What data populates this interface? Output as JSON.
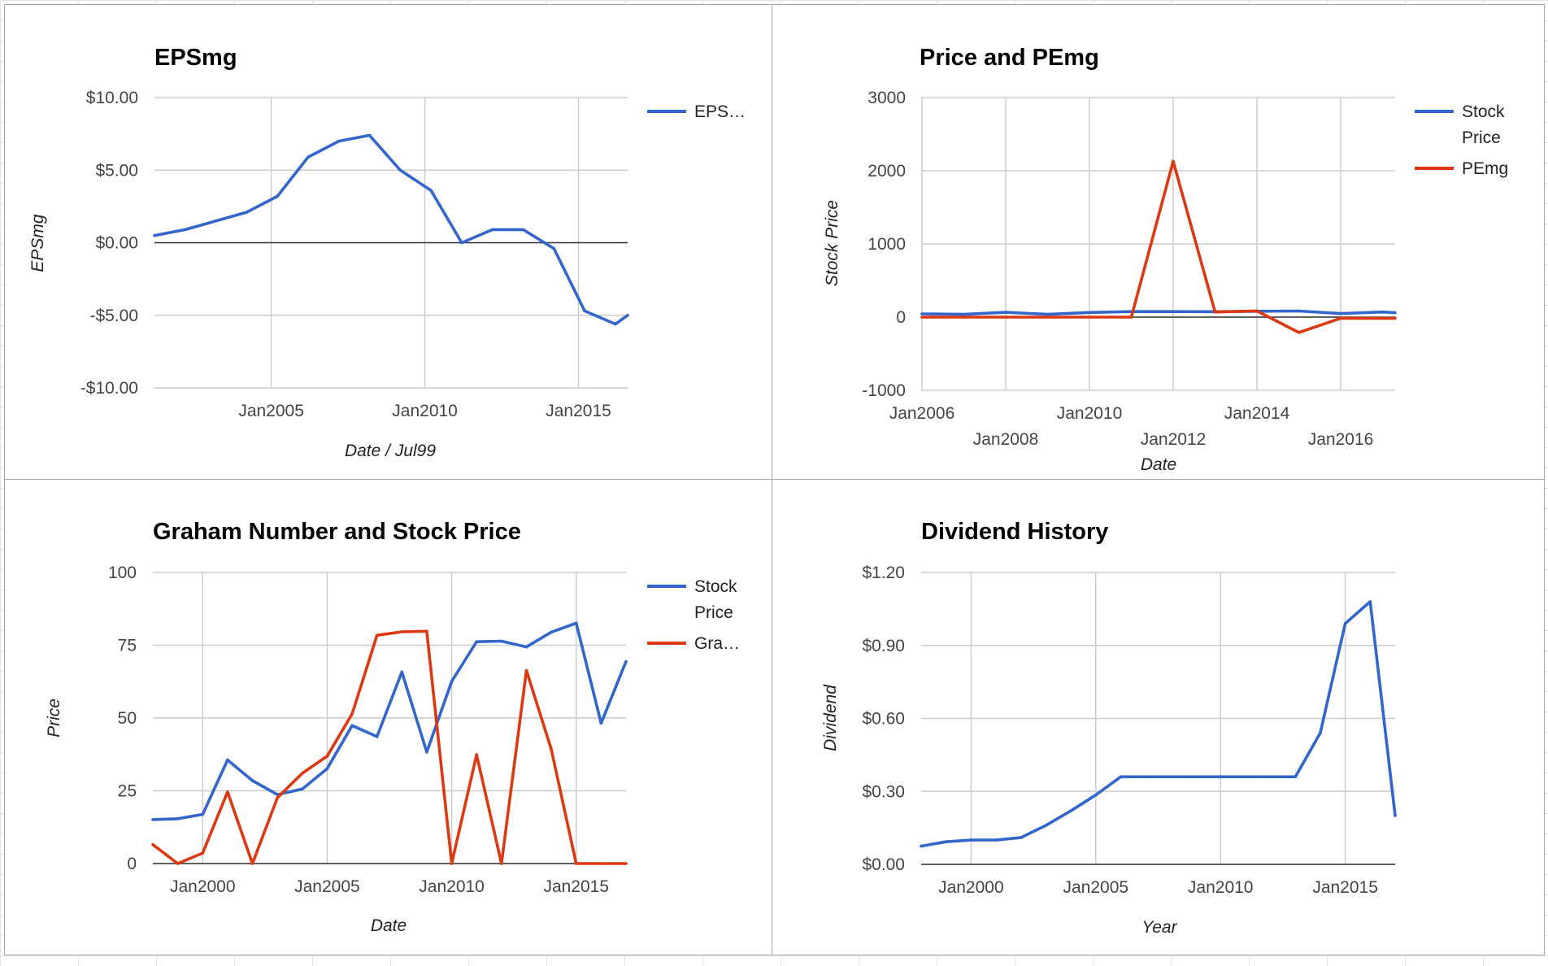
{
  "colors": {
    "blue": "#3366cc",
    "red": "#dc3912",
    "grid": "#cccccc",
    "zero_line": "#333333",
    "text": "#444444",
    "title": "#000000"
  },
  "charts": [
    {
      "title": "EPSmg",
      "ylabel": "EPSmg",
      "xlabel": "Date / Jul99",
      "xticks": [
        "Jan2005",
        "Jan2010",
        "Jan2015"
      ],
      "yticks": [
        "$10.00",
        "$5.00",
        "$0.00",
        "-$5.00",
        "-$10.00"
      ],
      "legend": [
        "EPS…"
      ]
    },
    {
      "title": "Price and PEmg",
      "ylabel": "Stock Price",
      "xlabel": "Date",
      "xticks": [
        "Jan2006",
        "Jan2008",
        "Jan2010",
        "Jan2012",
        "Jan2014",
        "Jan2016"
      ],
      "yticks": [
        "3000",
        "2000",
        "1000",
        "0",
        "-1000"
      ],
      "legend": [
        "Stock Price",
        "PEmg"
      ]
    },
    {
      "title": "Graham Number and Stock Price",
      "ylabel": "Price",
      "xlabel": "Date",
      "xticks": [
        "Jan2000",
        "Jan2005",
        "Jan2010",
        "Jan2015"
      ],
      "yticks": [
        "100",
        "75",
        "50",
        "25",
        "0"
      ],
      "legend": [
        "Stock Price",
        "Gra…"
      ]
    },
    {
      "title": "Dividend History",
      "ylabel": "Dividend",
      "xlabel": "Year",
      "xticks": [
        "Jan2000",
        "Jan2005",
        "Jan2010",
        "Jan2015"
      ],
      "yticks": [
        "$1.20",
        "$0.90",
        "$0.60",
        "$0.30",
        "$0.00"
      ],
      "legend": []
    }
  ],
  "chart_data": [
    {
      "type": "line",
      "title": "EPSmg",
      "xlabel": "Date / Jul99",
      "ylabel": "EPSmg",
      "ylim": [
        -10,
        10
      ],
      "xlim": [
        2001.2,
        2016.6
      ],
      "grid": true,
      "legend_position": "right",
      "x_ticks": [
        2005,
        2010,
        2015
      ],
      "y_ticks": [
        10,
        5,
        0,
        -5,
        -10
      ],
      "series": [
        {
          "name": "EPS…",
          "color": "#3366cc",
          "x": [
            2001.2,
            2002.2,
            2003.2,
            2004.2,
            2005.2,
            2006.2,
            2007.2,
            2008.2,
            2009.2,
            2010.2,
            2011.2,
            2012.2,
            2013.2,
            2014.2,
            2015.2,
            2016.2,
            2016.6
          ],
          "y": [
            0.5,
            0.9,
            1.5,
            2.1,
            3.2,
            5.9,
            7.0,
            7.4,
            5.0,
            3.6,
            0.0,
            0.9,
            0.9,
            -0.4,
            -4.7,
            -5.6,
            -5.0
          ]
        }
      ]
    },
    {
      "type": "line",
      "title": "Price and PEmg",
      "xlabel": "Date",
      "ylabel": "Stock Price",
      "ylim": [
        -1000,
        3000
      ],
      "xlim": [
        2006.0,
        2017.3
      ],
      "grid": true,
      "legend_position": "right",
      "x_ticks": [
        2006,
        2008,
        2010,
        2012,
        2014,
        2016
      ],
      "y_ticks": [
        3000,
        2000,
        1000,
        0,
        -1000
      ],
      "series": [
        {
          "name": "Stock Price",
          "color": "#3366cc",
          "x": [
            2006.0,
            2007.0,
            2008.0,
            2009.0,
            2010.0,
            2011.0,
            2012.0,
            2013.0,
            2014.0,
            2015.0,
            2016.0,
            2017.0,
            2017.3
          ],
          "y": [
            44,
            38,
            66,
            38,
            63,
            76,
            76,
            75,
            80,
            83,
            49,
            70,
            60
          ]
        },
        {
          "name": "PEmg",
          "color": "#dc3912",
          "x": [
            2006.0,
            2007.0,
            2008.0,
            2009.0,
            2010.0,
            2011.0,
            2012.0,
            2013.0,
            2014.0,
            2015.0,
            2016.0,
            2017.0,
            2017.3
          ],
          "y": [
            0,
            0,
            0,
            0,
            0,
            0,
            2130,
            70,
            85,
            -210,
            -15,
            -15,
            -15
          ]
        }
      ]
    },
    {
      "type": "line",
      "title": "Graham Number and Stock Price",
      "xlabel": "Date",
      "ylabel": "Price",
      "ylim": [
        0,
        100
      ],
      "xlim": [
        1998.0,
        2017.0
      ],
      "grid": true,
      "legend_position": "right",
      "x_ticks": [
        2000,
        2005,
        2010,
        2015
      ],
      "y_ticks": [
        100,
        75,
        50,
        25,
        0
      ],
      "series": [
        {
          "name": "Stock Price",
          "color": "#3366cc",
          "x": [
            1998.0,
            1999.0,
            2000.0,
            2001.0,
            2002.0,
            2003.0,
            2004.0,
            2005.0,
            2006.0,
            2007.0,
            2008.0,
            2009.0,
            2010.0,
            2011.0,
            2012.0,
            2013.0,
            2014.0,
            2015.0,
            2016.0,
            2017.0
          ],
          "y": [
            15.1,
            15.4,
            16.9,
            35.6,
            28.5,
            23.7,
            25.6,
            32.6,
            47.4,
            43.6,
            65.8,
            38.3,
            62.6,
            76.2,
            76.4,
            74.4,
            79.5,
            82.6,
            48.2,
            69.4
          ]
        },
        {
          "name": "Gra…",
          "color": "#dc3912",
          "x": [
            1998.0,
            1999.0,
            2000.0,
            2001.0,
            2002.0,
            2003.0,
            2004.0,
            2005.0,
            2006.0,
            2007.0,
            2008.0,
            2009.0,
            2010.0,
            2011.0,
            2012.0,
            2013.0,
            2014.0,
            2015.0,
            2016.0,
            2017.0
          ],
          "y": [
            6.5,
            0,
            3.6,
            24.6,
            0,
            22.6,
            31.0,
            36.9,
            51.4,
            78.4,
            79.6,
            79.8,
            0,
            37.4,
            0,
            66.3,
            39.2,
            0,
            0,
            0
          ]
        }
      ]
    },
    {
      "type": "line",
      "title": "Dividend History",
      "xlabel": "Year",
      "ylabel": "Dividend",
      "ylim": [
        0,
        1.2
      ],
      "xlim": [
        1998.0,
        2017.0
      ],
      "grid": true,
      "legend_position": "none",
      "x_ticks": [
        2000,
        2005,
        2010,
        2015
      ],
      "y_ticks": [
        1.2,
        0.9,
        0.6,
        0.3,
        0.0
      ],
      "series": [
        {
          "name": "",
          "color": "#3366cc",
          "x": [
            1998.0,
            1999.0,
            2000.0,
            2001.0,
            2002.0,
            2003.0,
            2004.0,
            2005.0,
            2006.0,
            2007.0,
            2008.0,
            2009.0,
            2010.0,
            2011.0,
            2012.0,
            2013.0,
            2014.0,
            2015.0,
            2016.0,
            2017.0
          ],
          "y": [
            0.075,
            0.093,
            0.1,
            0.1,
            0.11,
            0.16,
            0.22,
            0.285,
            0.36,
            0.36,
            0.36,
            0.36,
            0.36,
            0.36,
            0.36,
            0.36,
            0.54,
            0.99,
            1.08,
            0.2
          ]
        }
      ]
    }
  ]
}
